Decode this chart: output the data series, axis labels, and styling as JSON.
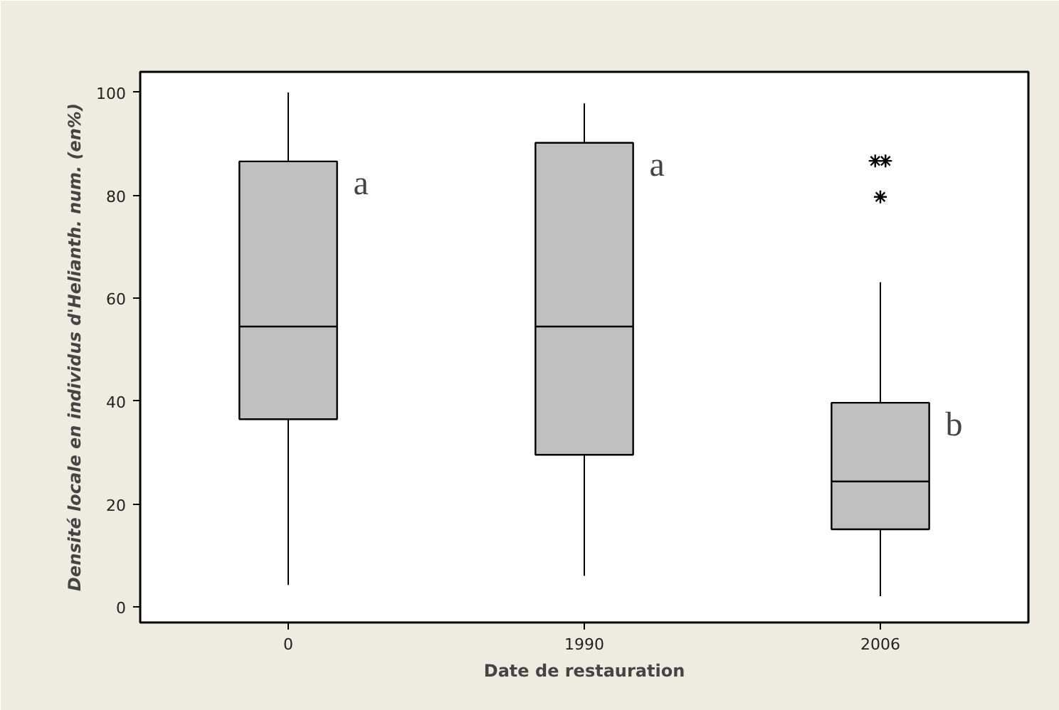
{
  "chart_data": {
    "type": "box",
    "xlabel": "Date de restauration",
    "ylabel": "Densité locale en individus d'Helianth. num. (en%)",
    "categories": [
      "0",
      "1990",
      "2006"
    ],
    "boxes": [
      {
        "low": 4.3,
        "q1": 36.5,
        "median": 54.5,
        "q3": 86.6,
        "high": 100
      },
      {
        "low": 6.1,
        "q1": 29.6,
        "median": 54.5,
        "q3": 90.2,
        "high": 97.9
      },
      {
        "low": 2.1,
        "q1": 15.1,
        "median": 24.4,
        "q3": 39.7,
        "high": 63.1,
        "outliers": [
          86.7,
          86.7,
          79.7
        ]
      }
    ],
    "color": "#c0c0c0",
    "ylim": [
      -3,
      104
    ],
    "yticks": [
      0,
      20,
      40,
      60,
      80,
      100
    ],
    "annotations": [
      "a",
      "a",
      "b"
    ],
    "grid": false
  }
}
